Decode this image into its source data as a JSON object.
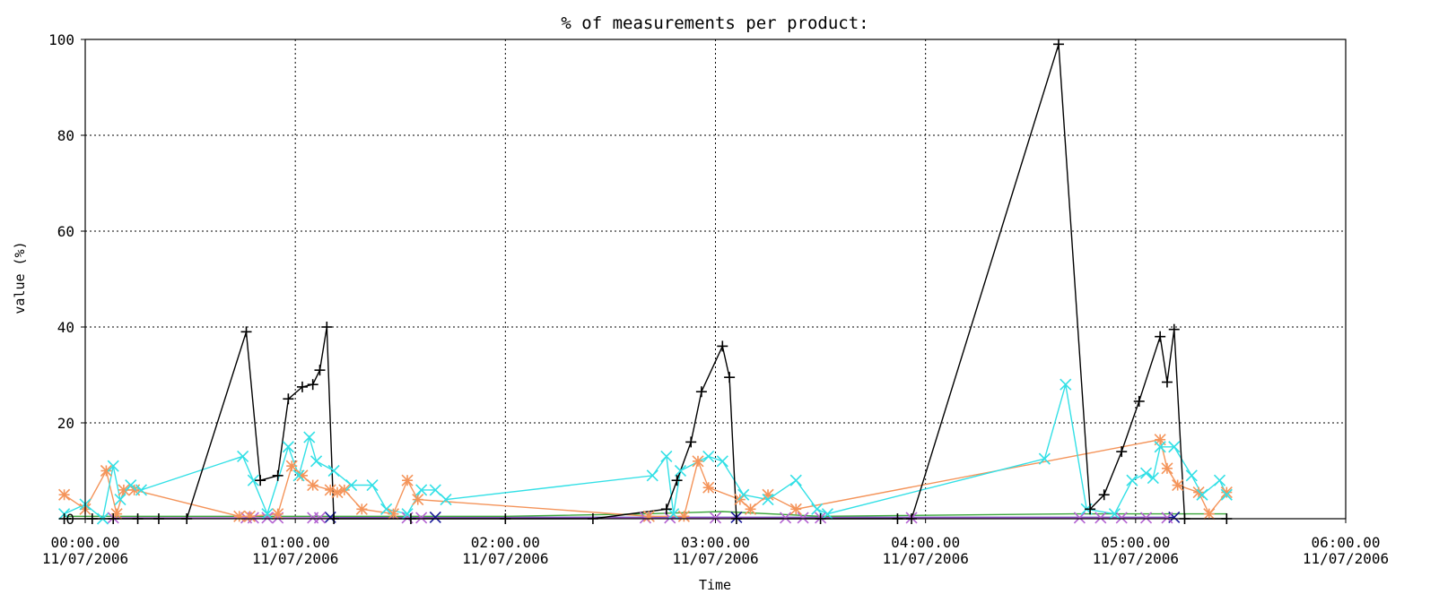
{
  "chart_data": {
    "type": "line",
    "title": "% of measurements per product:",
    "xlabel": "Time",
    "ylabel": "value (%)",
    "ylim": [
      0,
      100
    ],
    "xlim": [
      "2006-07-11 00:00",
      "2006-07-11 06:00"
    ],
    "x_unit": "minutes after 00:00.00 11/07/2006",
    "y_ticks": [
      "0",
      "20",
      "40",
      "60",
      "80",
      "100"
    ],
    "x_ticks": [
      {
        "time": "00:00.00",
        "date": "11/07/2006"
      },
      {
        "time": "01:00.00",
        "date": "11/07/2006"
      },
      {
        "time": "02:00.00",
        "date": "11/07/2006"
      },
      {
        "time": "03:00.00",
        "date": "11/07/2006"
      },
      {
        "time": "04:00.00",
        "date": "11/07/2006"
      },
      {
        "time": "05:00.00",
        "date": "11/07/2006"
      },
      {
        "time": "06:00.00",
        "date": "11/07/2006"
      }
    ],
    "grid": true,
    "legend": "none",
    "series": [
      {
        "color": "#000000",
        "marker": "plus",
        "points": [
          [
            -6,
            0
          ],
          [
            2,
            0
          ],
          [
            8,
            0
          ],
          [
            15,
            0
          ],
          [
            21,
            0
          ],
          [
            29,
            0
          ],
          [
            46,
            39
          ],
          [
            50,
            8
          ],
          [
            55,
            9
          ],
          [
            58,
            25
          ],
          [
            62,
            27.5
          ],
          [
            65,
            28
          ],
          [
            67,
            31
          ],
          [
            69,
            40
          ],
          [
            71,
            0
          ],
          [
            93,
            0
          ],
          [
            120,
            0
          ],
          [
            145,
            0
          ],
          [
            166,
            2
          ],
          [
            169,
            8
          ],
          [
            173,
            16
          ],
          [
            176,
            26.5
          ],
          [
            182,
            36
          ],
          [
            184,
            29.5
          ],
          [
            186,
            0
          ],
          [
            210,
            0
          ],
          [
            232,
            0
          ],
          [
            236,
            0
          ],
          [
            278,
            99
          ],
          [
            287,
            2
          ],
          [
            291,
            5
          ],
          [
            296,
            14
          ],
          [
            301,
            24.5
          ],
          [
            307,
            38
          ],
          [
            309,
            28.5
          ],
          [
            311,
            39.5
          ],
          [
            314,
            0
          ],
          [
            326,
            0
          ]
        ]
      },
      {
        "color": "#33e0e6",
        "marker": "x",
        "points": [
          [
            -6,
            1
          ],
          [
            0,
            3
          ],
          [
            5,
            0
          ],
          [
            8,
            11
          ],
          [
            10,
            4
          ],
          [
            13,
            7
          ],
          [
            16,
            6
          ],
          [
            45,
            13
          ],
          [
            48,
            8
          ],
          [
            52,
            1
          ],
          [
            58,
            15
          ],
          [
            61,
            9
          ],
          [
            64,
            17
          ],
          [
            66,
            12
          ],
          [
            71,
            10
          ],
          [
            76,
            7
          ],
          [
            82,
            7
          ],
          [
            86,
            2
          ],
          [
            92,
            1
          ],
          [
            96,
            6
          ],
          [
            100,
            6
          ],
          [
            103,
            4
          ],
          [
            162,
            9
          ],
          [
            166,
            13
          ],
          [
            168,
            1
          ],
          [
            170,
            10
          ],
          [
            178,
            13
          ],
          [
            182,
            12
          ],
          [
            188,
            5
          ],
          [
            195,
            4
          ],
          [
            203,
            8
          ],
          [
            209,
            2
          ],
          [
            212,
            1
          ],
          [
            274,
            12.5
          ],
          [
            280,
            28
          ],
          [
            286,
            2
          ],
          [
            294,
            1
          ],
          [
            299,
            8
          ],
          [
            303,
            9.5
          ],
          [
            305,
            8.5
          ],
          [
            307,
            15
          ],
          [
            311,
            15
          ],
          [
            316,
            9
          ],
          [
            319,
            5
          ],
          [
            324,
            8
          ],
          [
            326,
            5
          ]
        ]
      },
      {
        "color": "#f4945a",
        "marker": "star",
        "points": [
          [
            -6,
            5
          ],
          [
            0,
            2
          ],
          [
            6,
            10
          ],
          [
            9,
            1
          ],
          [
            11,
            6
          ],
          [
            14,
            6
          ],
          [
            44,
            0.5
          ],
          [
            47,
            0.5
          ],
          [
            55,
            1
          ],
          [
            59,
            11
          ],
          [
            62,
            9
          ],
          [
            65,
            7
          ],
          [
            70,
            6
          ],
          [
            72,
            5.5
          ],
          [
            74,
            6
          ],
          [
            79,
            2
          ],
          [
            88,
            1
          ],
          [
            92,
            8
          ],
          [
            95,
            4
          ],
          [
            161,
            0.5
          ],
          [
            171,
            0.5
          ],
          [
            175,
            12
          ],
          [
            178,
            6.5
          ],
          [
            187,
            4
          ],
          [
            190,
            2
          ],
          [
            195,
            5
          ],
          [
            203,
            2
          ],
          [
            307,
            16.5
          ],
          [
            309,
            10.5
          ],
          [
            312,
            7
          ],
          [
            318,
            5.5
          ],
          [
            321,
            1
          ],
          [
            326,
            5.5
          ]
        ]
      },
      {
        "color": "#3aa63a",
        "marker": "none",
        "points": [
          [
            -6,
            0.5
          ],
          [
            46,
            0.5
          ],
          [
            70,
            0.5
          ],
          [
            120,
            0.5
          ],
          [
            160,
            1
          ],
          [
            182,
            1.5
          ],
          [
            210,
            0.5
          ],
          [
            282,
            1
          ],
          [
            300,
            1
          ],
          [
            326,
            1
          ]
        ]
      },
      {
        "color": "#b464d2",
        "marker": "x",
        "points": [
          [
            8,
            0.2
          ],
          [
            46,
            0.2
          ],
          [
            48,
            0.2
          ],
          [
            52,
            0.2
          ],
          [
            55,
            0.2
          ],
          [
            65,
            0.2
          ],
          [
            67,
            0.2
          ],
          [
            92,
            0.2
          ],
          [
            96,
            0.2
          ],
          [
            160,
            0.2
          ],
          [
            167,
            0.2
          ],
          [
            180,
            0.2
          ],
          [
            200,
            0.2
          ],
          [
            205,
            0.2
          ],
          [
            210,
            0.2
          ],
          [
            236,
            0.2
          ],
          [
            284,
            0.2
          ],
          [
            290,
            0.2
          ],
          [
            296,
            0.2
          ],
          [
            303,
            0.2
          ],
          [
            309,
            0.2
          ]
        ]
      },
      {
        "color": "#1a1a9a",
        "marker": "x",
        "points": [
          [
            70,
            0.3
          ],
          [
            100,
            0.3
          ],
          [
            186,
            0.3
          ],
          [
            311,
            0.3
          ]
        ]
      }
    ]
  }
}
